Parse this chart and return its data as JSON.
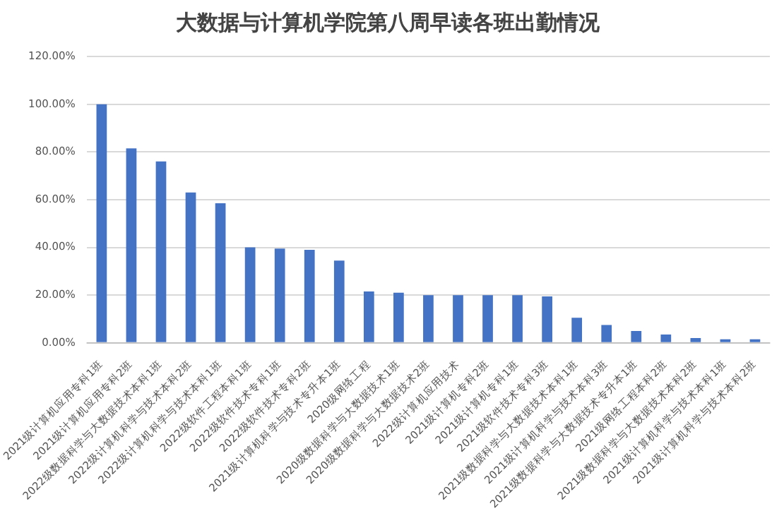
{
  "chart_data": {
    "type": "bar",
    "title": "大数据与计算机学院第八周早读各班出勤情况",
    "categories": [
      "2021级计算机应用专科1班",
      "2021级计算机应用专科2班",
      "2022级数据科学与大数据技术本科1班",
      "2022级计算机科学与技术本科2班",
      "2022级计算机科学与技术本科1班",
      "2022级软件工程本科1班",
      "2022级软件技术专科1班",
      "2022级软件技术专科2班",
      "2021级计算机科学与技术专升本1班",
      "2020级网络工程",
      "2020级数据科学与大数据技术1班",
      "2020级数据科学与大数据技术2班",
      "2022级计算机应用技术",
      "2021级计算机专科2班",
      "2021级计算机专科1班",
      "2021级软件技术专科3班",
      "2021级数据科学与大数据技术本科1班",
      "2021级计算机科学与技术本科3班",
      "2021级数据科学与大数据技术专升本1班",
      "2021级网络工程本科2班",
      "2021级数据科学与大数据技术本科2班",
      "2021级计算机科学与技术本科1班",
      "2021级计算机科学与技术本科2班"
    ],
    "values": [
      100,
      81.5,
      76,
      63,
      58.5,
      40,
      39.5,
      39,
      34.5,
      21.5,
      21,
      20,
      20,
      20,
      20,
      19.5,
      10.5,
      7.5,
      5,
      3.5,
      2,
      1.5,
      1.5
    ],
    "color": "#4472c4",
    "ylim": [
      0,
      120
    ],
    "yticks": [
      {
        "value": 0,
        "label": "0.00%"
      },
      {
        "value": 20,
        "label": "20.00%"
      },
      {
        "value": 40,
        "label": "40.00%"
      },
      {
        "value": 60,
        "label": "60.00%"
      },
      {
        "value": 80,
        "label": "80.00%"
      },
      {
        "value": 100,
        "label": "100.00%"
      },
      {
        "value": 120,
        "label": "120.00%"
      }
    ],
    "grid": "y"
  }
}
